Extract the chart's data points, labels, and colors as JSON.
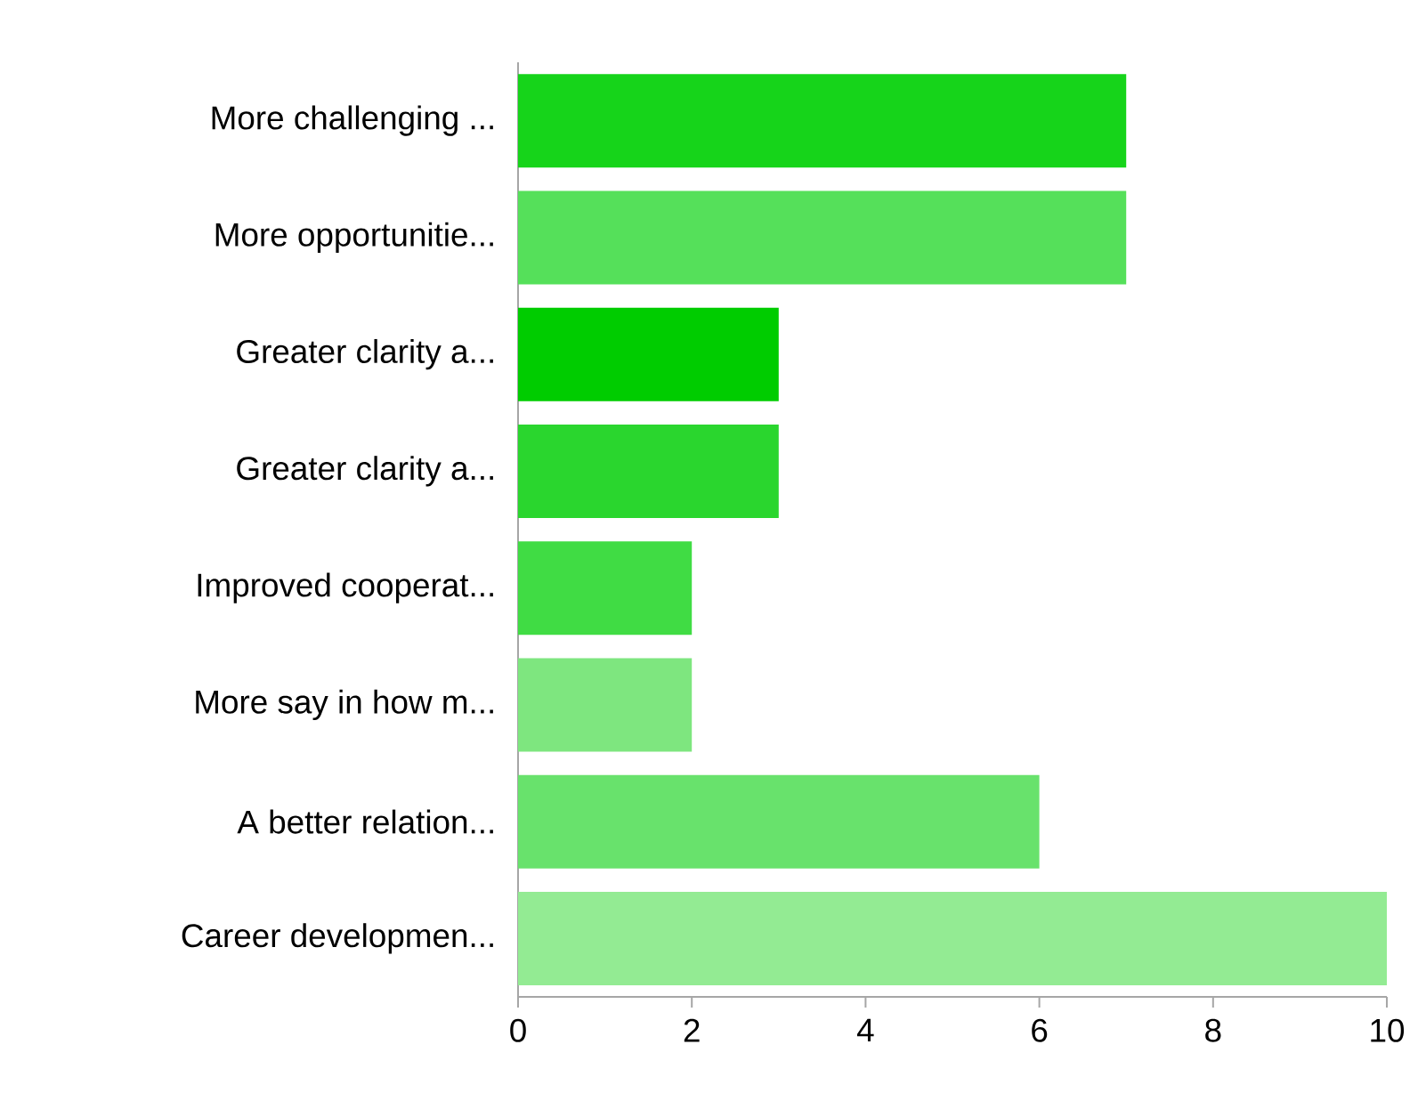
{
  "chart_data": {
    "type": "bar",
    "orientation": "horizontal",
    "categories": [
      "More challenging ...",
      "More opportunitie...",
      "Greater clarity a...",
      "Greater clarity a...",
      "Improved cooperat...",
      "More say in how m...",
      "A better relation...",
      "Career developmen..."
    ],
    "values": [
      7,
      7,
      3,
      3,
      2,
      2,
      6,
      10
    ],
    "colors": [
      "#16d41a",
      "#55e05a",
      "#00cc00",
      "#2ad62e",
      "#40dc44",
      "#7ee67f",
      "#68e26c",
      "#93eb93"
    ],
    "xlim": [
      0,
      10
    ],
    "xticks": [
      0,
      2,
      4,
      6,
      8,
      10
    ]
  }
}
